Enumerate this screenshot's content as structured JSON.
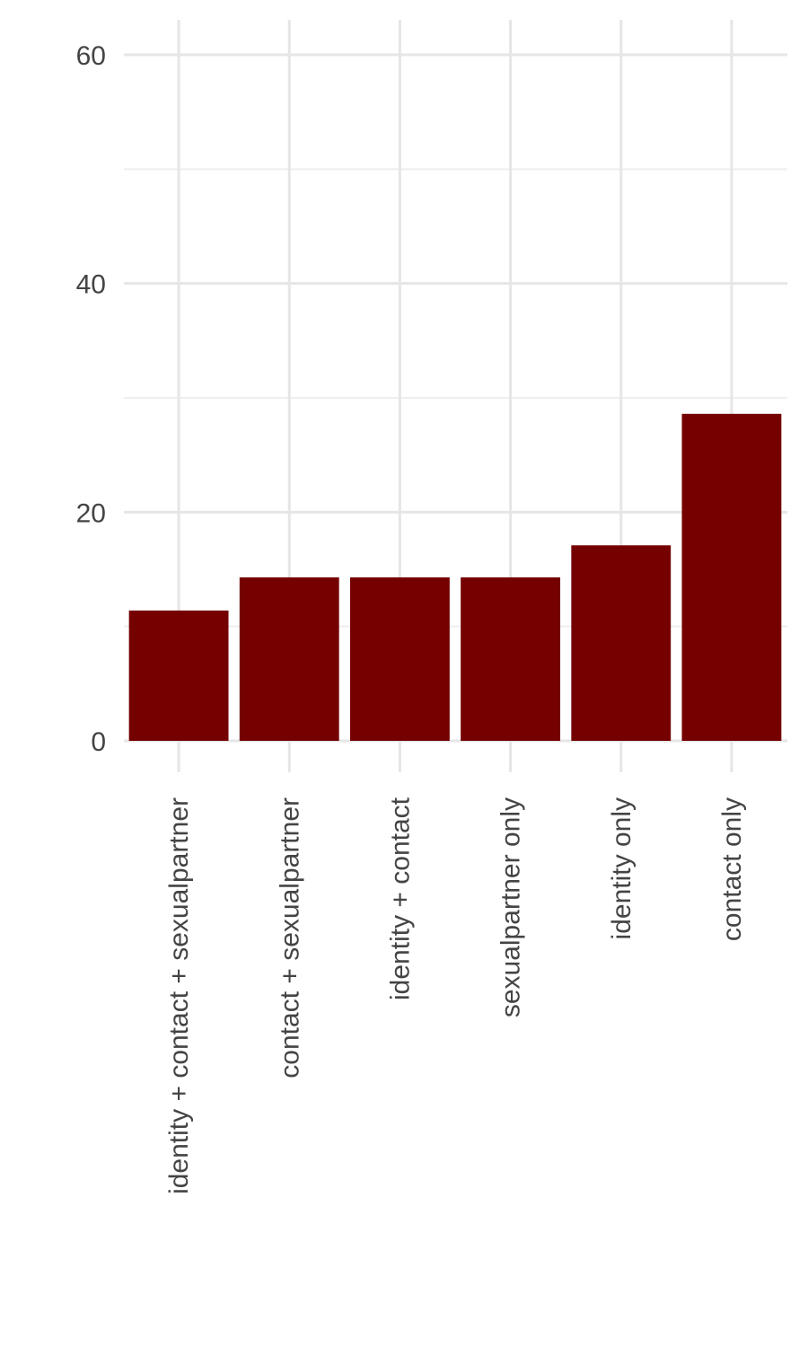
{
  "chart_data": {
    "type": "bar",
    "categories": [
      "identity + contact + sexualpartner",
      "contact + sexualpartner",
      "identity + contact",
      "sexualpartner only",
      "identity only",
      "contact only"
    ],
    "values": [
      11.4,
      14.3,
      14.3,
      14.3,
      17.1,
      28.6
    ],
    "title": "",
    "xlabel": "",
    "ylabel": "",
    "ylim": [
      0,
      60
    ],
    "yticks": [
      "0",
      "20",
      "40",
      "60"
    ],
    "grid": true,
    "legend": "none",
    "x_label_rotation": "vertical",
    "colors": {
      "bar": "#750000",
      "grid": "#e6e6e6",
      "text": "#444444"
    }
  }
}
